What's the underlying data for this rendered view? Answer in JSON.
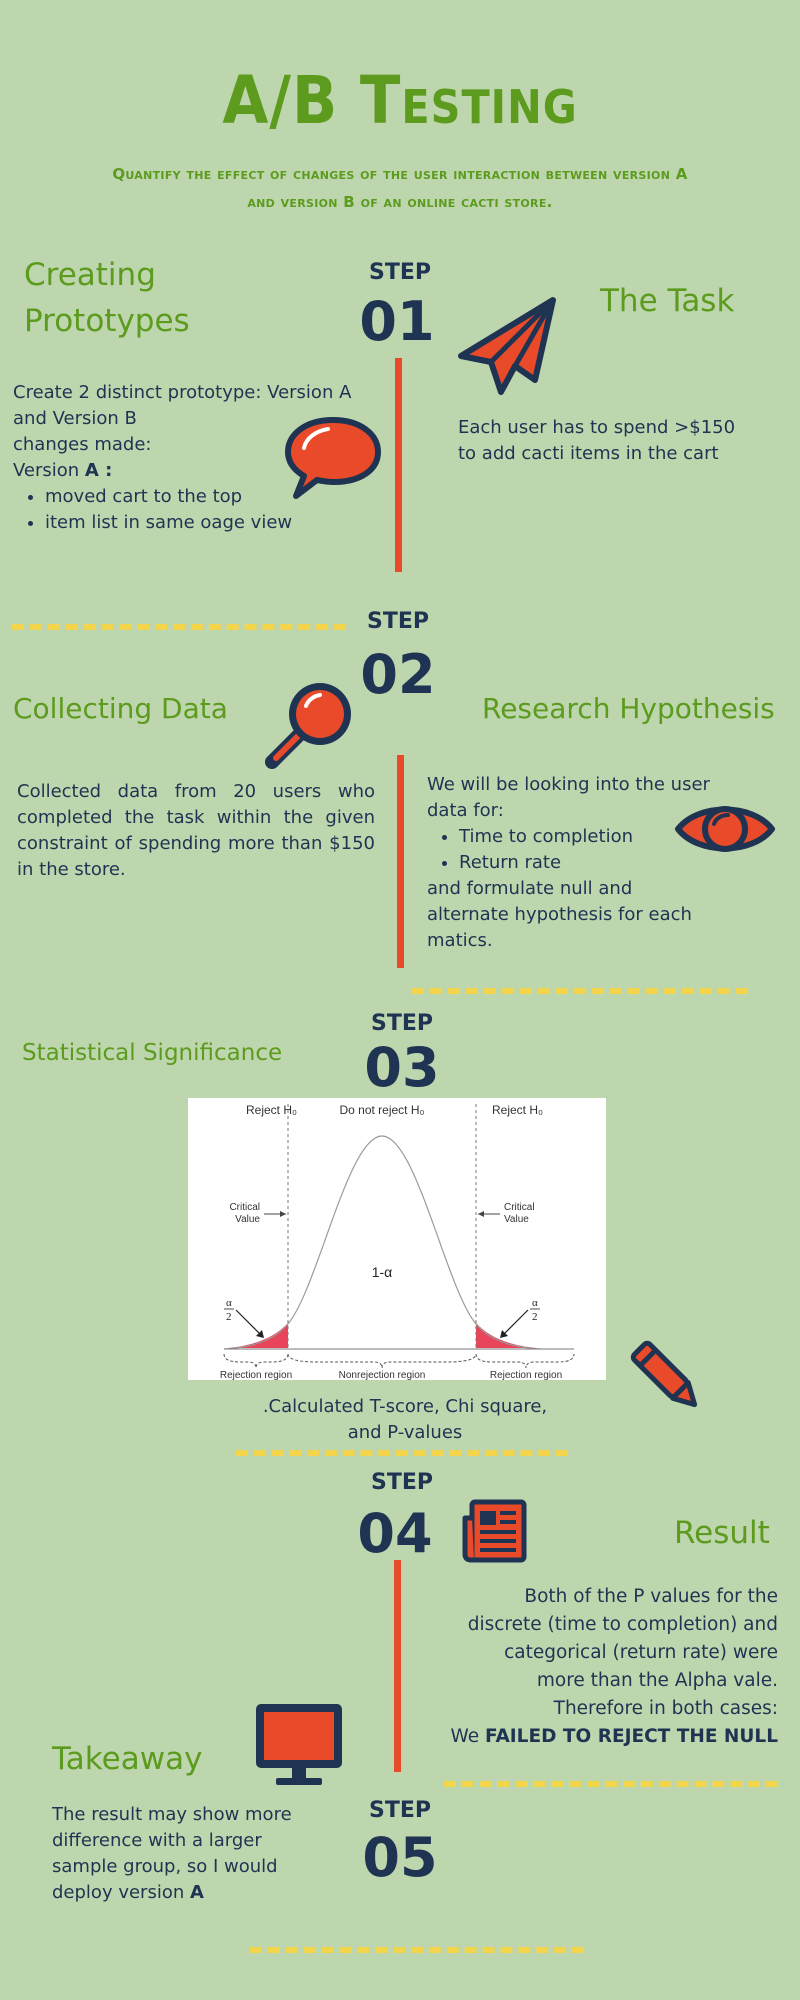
{
  "header": {
    "title": "A/B Testing",
    "subtitle_line1": "Quantify the effect of changes of the user interaction between version A",
    "subtitle_line2": "and version B of an online cacti store."
  },
  "step_word": "STEP",
  "steps": [
    {
      "label": "STEP",
      "number": "01"
    },
    {
      "label": "STEP",
      "number": "02"
    },
    {
      "label": "STEP",
      "number": "03"
    },
    {
      "label": "STEP",
      "number": "04"
    },
    {
      "label": "STEP",
      "number": "05"
    }
  ],
  "prototypes": {
    "heading_line1": "Creating",
    "heading_line2": "Prototypes",
    "line1": "Create 2 distinct prototype: Version A",
    "line2": "and Version B",
    "line3": "changes made:",
    "version_prefix": "Version ",
    "version_bold": "A :",
    "bullets": [
      "moved cart to the top",
      "item list in same oage view"
    ]
  },
  "task": {
    "heading": "The Task",
    "line1": "Each user  has to spend >$150",
    "line2": "to add cacti items in the cart"
  },
  "collecting": {
    "heading": "Collecting Data",
    "text": "Collected data from 20 users who completed the task within the given constraint of spending more than $150 in the store."
  },
  "hypothesis": {
    "heading": "Research Hypothesis",
    "line1": "We will be looking into the user",
    "line2": "data for:",
    "bullets": [
      "Time to completion",
      "Return rate"
    ],
    "line3": "and formulate null and",
    "line4": "alternate hypothesis for each",
    "line5": "matics."
  },
  "significance": {
    "heading": "Statistical Significance",
    "chart": {
      "reject_left": "Reject H₀",
      "do_not_reject": "Do not reject H₀",
      "reject_right": "Reject H₀",
      "critical_value_left_1": "Critical",
      "critical_value_left_2": "Value",
      "critical_value_right_1": "Critical",
      "critical_value_right_2": "Value",
      "center_label": "1-α",
      "alpha_half_num": "α",
      "alpha_half_den": "2",
      "rejection_region_left": "Rejection region",
      "nonrejection_region": "Nonrejection region",
      "rejection_region_right": "Rejection region"
    },
    "caption_line1": ".Calculated T-score, Chi square,",
    "caption_line2": "and P-values"
  },
  "result": {
    "heading": "Result",
    "line1": "Both of the P values for the",
    "line2": "discrete (time to completion)  and",
    "line3": "categorical (return rate) were",
    "line4": "more than the Alpha vale.",
    "line5": "Therefore in both cases:",
    "line6_prefix": "We ",
    "line6_bold": "FAILED TO REJECT THE NULL"
  },
  "takeaway": {
    "heading": "Takeaway",
    "line1": "The result may show more",
    "line2": "difference with a larger",
    "line3": "sample group, so I would",
    "line4_prefix": "deploy version ",
    "line4_bold": "A"
  },
  "colors": {
    "background": "#bdd6ad",
    "green": "#5c9b1e",
    "navy": "#1f3352",
    "orange": "#e84a2a",
    "yellow": "#f2d54b"
  }
}
